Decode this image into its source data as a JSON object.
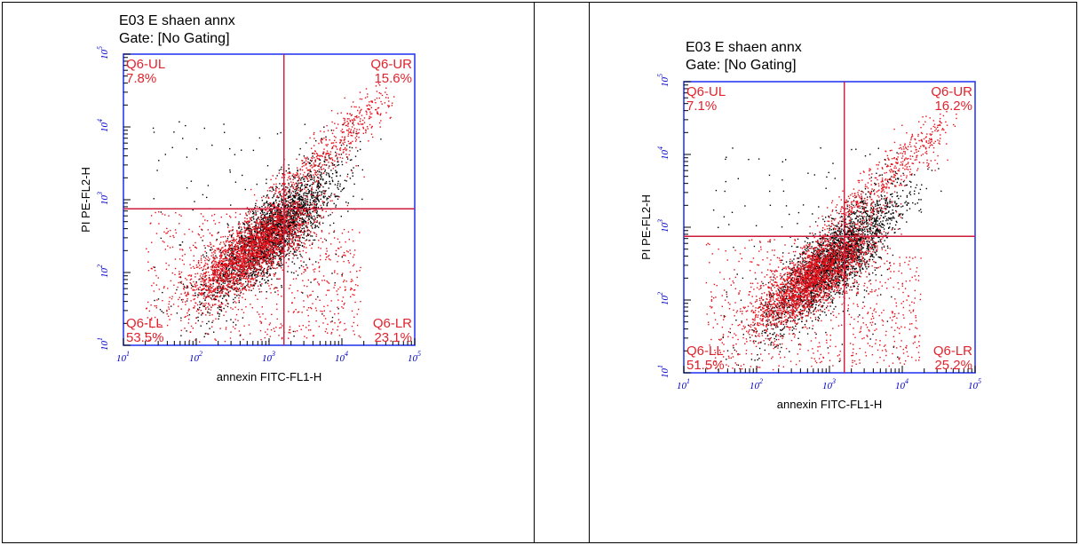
{
  "colors": {
    "frame": "#2a3cf0",
    "quadrant_line": "#cc1a3a",
    "event_in_gate": "#e8101a",
    "event_other": "#000000",
    "label": "#e0232e",
    "tick_text": "#0000cc"
  },
  "plots": [
    {
      "title_line1": "E03 E shaen annx",
      "title_line2": "Gate: [No Gating]",
      "ylabel": "PI PE-FL2-H",
      "xlabel": "annexin FITC-FL1-H",
      "labels": {
        "ul": "Q6-UL",
        "ul_pct": "7.8%",
        "ur": "Q6-UR",
        "ur_pct": "15.6%",
        "ll": "Q6-LL",
        "ll_pct": "53.5%",
        "lr": "Q6-LR",
        "lr_pct": "23.1%"
      }
    },
    {
      "title_line1": "E03 E shaen annx",
      "title_line2": "Gate: [No Gating]",
      "ylabel": "PI PE-FL2-H",
      "xlabel": "annexin FITC-FL1-H",
      "labels": {
        "ul": "Q6-UL",
        "ul_pct": "7.1%",
        "ur": "Q6-UR",
        "ur_pct": "16.2%",
        "ll": "Q6-LL",
        "ll_pct": "51.5%",
        "lr": "Q6-LR",
        "lr_pct": "25.2%"
      }
    }
  ],
  "chart_data": [
    {
      "type": "scatter",
      "title": "E03 E shaen annx",
      "subtitle": "Gate: [No Gating]",
      "xlabel": "annexin FITC-FL1-H",
      "ylabel": "PI PE-FL2-H",
      "x_scale": "log",
      "y_scale": "log",
      "xlim": [
        10,
        100000
      ],
      "ylim": [
        10,
        100000
      ],
      "x_ticks": [
        "10^1",
        "10^2",
        "10^3",
        "10^4",
        "10^5"
      ],
      "y_ticks": [
        "10^1",
        "10^2",
        "10^3",
        "10^4",
        "10^5"
      ],
      "quadrant_gate": {
        "x": 1600,
        "y": 750
      },
      "quadrants": [
        {
          "name": "Q6-UL",
          "percent": 7.8
        },
        {
          "name": "Q6-UR",
          "percent": 15.6
        },
        {
          "name": "Q6-LL",
          "percent": 53.5
        },
        {
          "name": "Q6-LR",
          "percent": 23.1
        }
      ],
      "grid": false,
      "legend": "none"
    },
    {
      "type": "scatter",
      "title": "E03 E shaen annx",
      "subtitle": "Gate: [No Gating]",
      "xlabel": "annexin FITC-FL1-H",
      "ylabel": "PI PE-FL2-H",
      "x_scale": "log",
      "y_scale": "log",
      "xlim": [
        10,
        100000
      ],
      "ylim": [
        10,
        100000
      ],
      "x_ticks": [
        "10^1",
        "10^2",
        "10^3",
        "10^4",
        "10^5"
      ],
      "y_ticks": [
        "10^1",
        "10^2",
        "10^3",
        "10^4",
        "10^5"
      ],
      "quadrant_gate": {
        "x": 1600,
        "y": 750
      },
      "quadrants": [
        {
          "name": "Q6-UL",
          "percent": 7.1
        },
        {
          "name": "Q6-UR",
          "percent": 16.2
        },
        {
          "name": "Q6-LL",
          "percent": 51.5
        },
        {
          "name": "Q6-LR",
          "percent": 25.2
        }
      ],
      "grid": false,
      "legend": "none"
    }
  ]
}
